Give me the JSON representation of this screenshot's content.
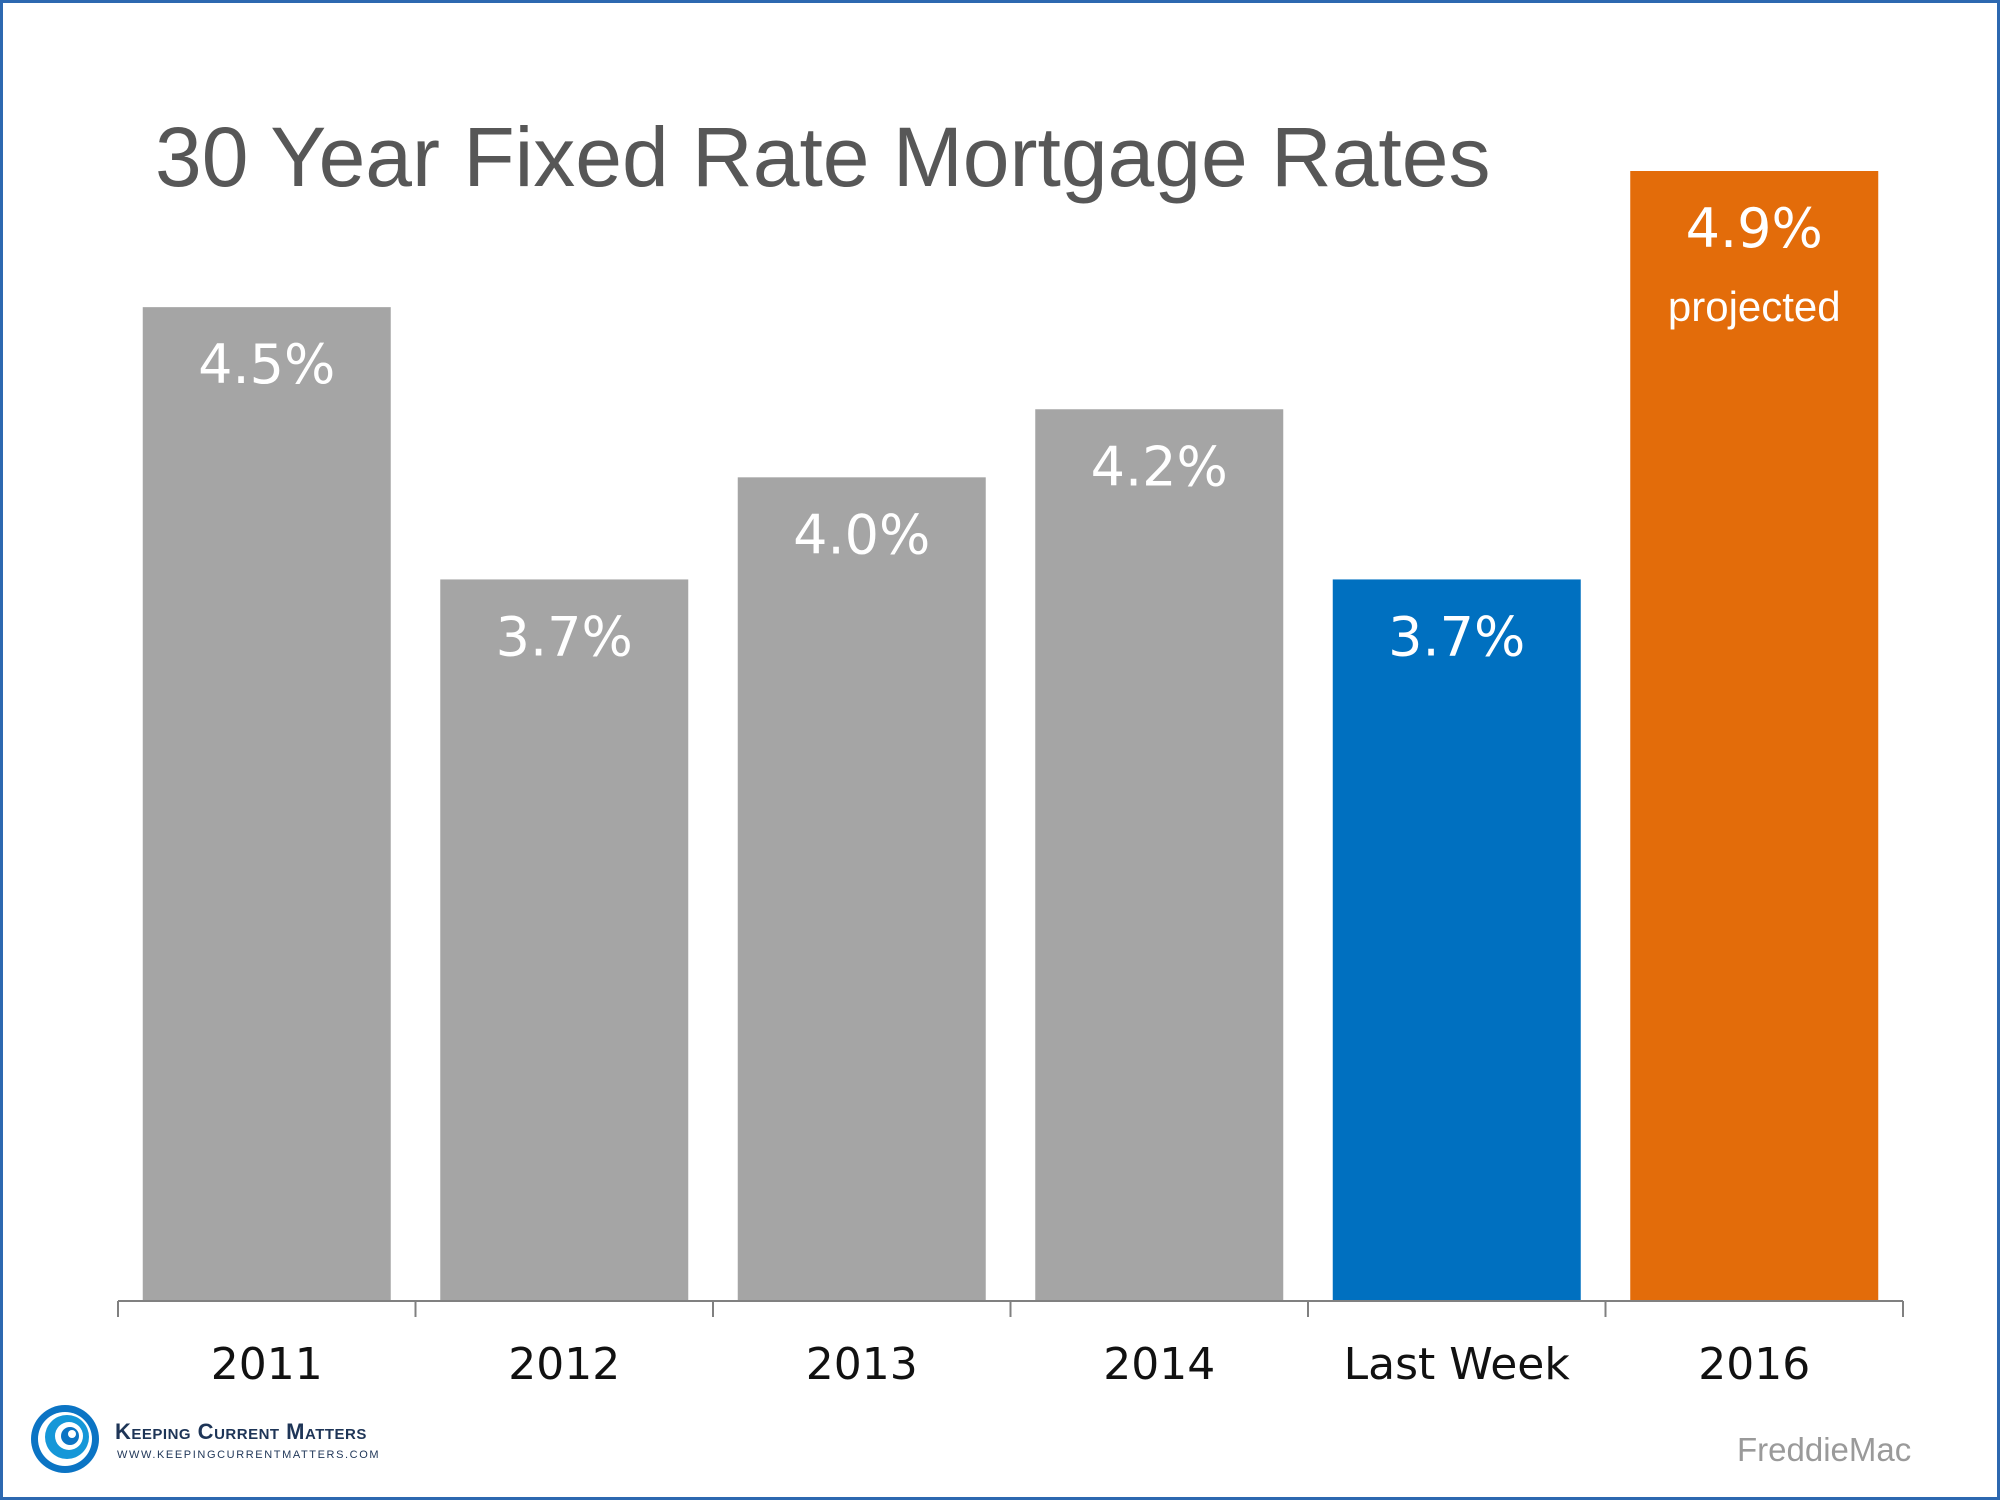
{
  "chart_data": {
    "type": "bar",
    "title": "30 Year Fixed Rate Mortgage Rates",
    "categories": [
      "2011",
      "2012",
      "2013",
      "2014",
      "Last Week",
      "2016"
    ],
    "values": [
      4.5,
      3.7,
      4.0,
      4.2,
      3.7,
      4.9
    ],
    "value_labels": [
      "4.5%",
      "3.7%",
      "4.0%",
      "4.2%",
      "3.7%",
      "4.9%"
    ],
    "notes": [
      "",
      "",
      "",
      "",
      "",
      "projected"
    ],
    "colors": [
      "#a5a5a5",
      "#a5a5a5",
      "#a5a5a5",
      "#a5a5a5",
      "#0070c0",
      "#e36c0a"
    ],
    "ylim": [
      1.58,
      4.9
    ],
    "grid": false,
    "xlabel": "",
    "ylabel": ""
  },
  "branding": {
    "logo_name": "Keeping Current Matters",
    "logo_url": "WWW.KEEPINGCURRENTMATTERS.COM",
    "source": "FreddieMac"
  }
}
